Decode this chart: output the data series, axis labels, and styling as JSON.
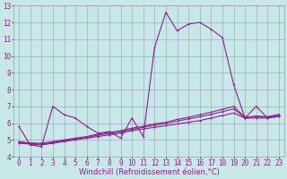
{
  "background_color": "#c8e8e8",
  "grid_color": "#9999bb",
  "line_color": "#882288",
  "xlabel": "Windchill (Refroidissement éolien,°C)",
  "xlabel_fontsize": 6.0,
  "tick_fontsize": 5.5,
  "xlim": [
    -0.5,
    23.5
  ],
  "ylim": [
    4,
    13
  ],
  "yticks": [
    4,
    5,
    6,
    7,
    8,
    9,
    10,
    11,
    12,
    13
  ],
  "xticks": [
    0,
    1,
    2,
    3,
    4,
    5,
    6,
    7,
    8,
    9,
    10,
    11,
    12,
    13,
    14,
    15,
    16,
    17,
    18,
    19,
    20,
    21,
    22,
    23
  ],
  "line1_x": [
    0,
    1,
    2,
    3,
    4,
    5,
    6,
    7,
    8,
    9,
    10,
    11,
    12,
    13,
    14,
    15,
    16,
    17,
    18,
    19,
    20,
    21,
    22,
    23
  ],
  "line1_y": [
    5.8,
    4.7,
    4.6,
    7.0,
    6.5,
    6.3,
    5.8,
    5.4,
    5.5,
    5.1,
    6.3,
    5.2,
    10.5,
    12.6,
    11.5,
    11.9,
    12.0,
    11.6,
    11.1,
    8.3,
    6.3,
    7.0,
    6.3,
    6.4
  ],
  "line2_x": [
    0,
    1,
    2,
    3,
    4,
    5,
    6,
    7,
    8,
    9,
    10,
    11,
    12,
    13,
    14,
    15,
    16,
    17,
    18,
    19,
    20,
    21,
    22,
    23
  ],
  "line2_y": [
    4.8,
    4.75,
    4.7,
    4.8,
    4.9,
    5.0,
    5.1,
    5.2,
    5.3,
    5.4,
    5.55,
    5.65,
    5.75,
    5.85,
    5.95,
    6.05,
    6.15,
    6.3,
    6.45,
    6.6,
    6.3,
    6.3,
    6.3,
    6.4
  ],
  "line3_x": [
    0,
    1,
    2,
    3,
    4,
    5,
    6,
    7,
    8,
    9,
    10,
    11,
    12,
    13,
    14,
    15,
    16,
    17,
    18,
    19,
    20,
    21,
    22,
    23
  ],
  "line3_y": [
    4.85,
    4.78,
    4.75,
    4.85,
    4.95,
    5.05,
    5.15,
    5.28,
    5.38,
    5.48,
    5.63,
    5.75,
    5.88,
    5.98,
    6.12,
    6.25,
    6.38,
    6.52,
    6.68,
    6.85,
    6.32,
    6.38,
    6.35,
    6.48
  ],
  "line4_x": [
    0,
    1,
    2,
    3,
    4,
    5,
    6,
    7,
    8,
    9,
    10,
    11,
    12,
    13,
    14,
    15,
    16,
    17,
    18,
    19,
    20,
    21,
    22,
    23
  ],
  "line4_y": [
    4.9,
    4.82,
    4.8,
    4.9,
    5.0,
    5.1,
    5.2,
    5.35,
    5.45,
    5.55,
    5.7,
    5.82,
    5.95,
    6.05,
    6.22,
    6.35,
    6.5,
    6.65,
    6.82,
    7.0,
    6.35,
    6.42,
    6.38,
    6.52
  ]
}
